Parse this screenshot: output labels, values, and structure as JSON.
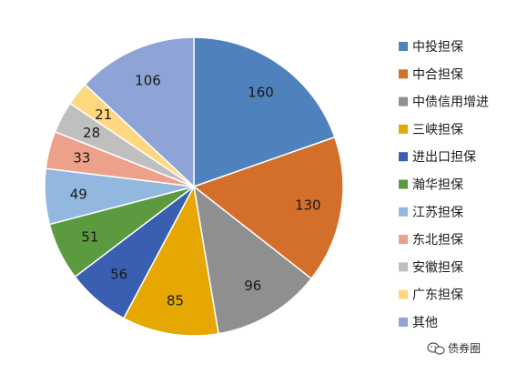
{
  "chart_data": {
    "type": "pie",
    "categories": [
      "中投担保",
      "中合担保",
      "中债信用增进",
      "三峡担保",
      "进出口担保",
      "瀚华担保",
      "江苏担保",
      "东北担保",
      "安徽担保",
      "广东担保",
      "其他"
    ],
    "values": [
      160,
      130,
      96,
      85,
      56,
      51,
      49,
      33,
      28,
      21,
      106
    ],
    "colors": [
      "#4f81bd",
      "#d46f2b",
      "#8f8f8f",
      "#e6a800",
      "#3a5fb0",
      "#5b9a3f",
      "#93b8e0",
      "#eda08a",
      "#bfbfbf",
      "#fed77f",
      "#8ea3d6"
    ],
    "legend_position": "right",
    "title": "",
    "grid": false
  },
  "watermark": {
    "text": "债券圈",
    "icon": "wechat-icon"
  }
}
